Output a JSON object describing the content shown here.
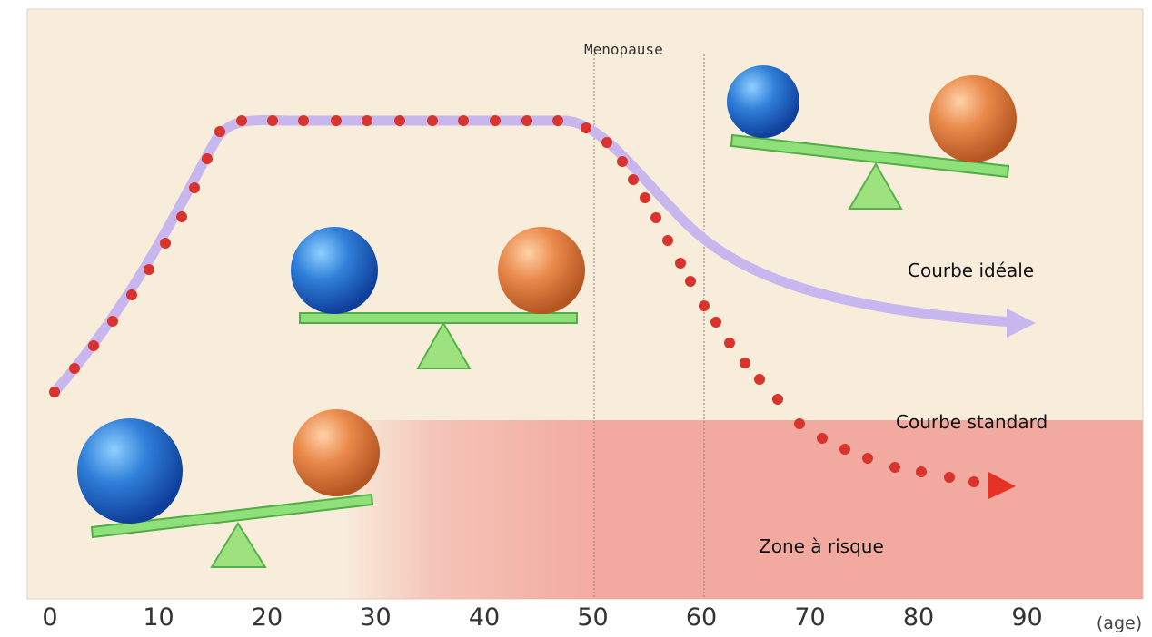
{
  "figure": {
    "event_label": "Menopause",
    "labels": {
      "ideal": "Courbe idéale",
      "standard": "Courbe standard",
      "risk_zone": "Zone à risque"
    },
    "x_axis": {
      "ticks": [
        "0",
        "10",
        "20",
        "30",
        "40",
        "50",
        "60",
        "70",
        "80",
        "90"
      ],
      "unit": "(age)"
    },
    "colors": {
      "background": "#f8ecdb",
      "risk_zone": "#f2aaa0",
      "ideal_curve": "#c7b7ee",
      "standard_dots": "#d8332c",
      "beam": "#7fd86f",
      "blue_ball": "#2f7fd9",
      "orange_ball": "#e9894a"
    }
  }
}
